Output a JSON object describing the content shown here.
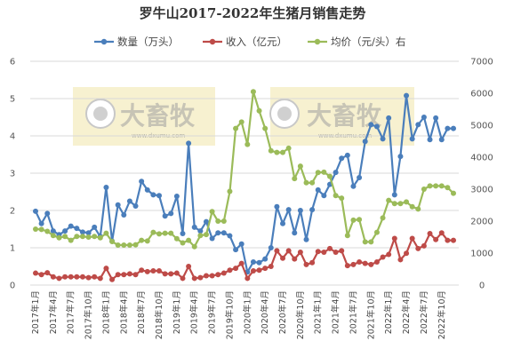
{
  "chart_data": {
    "type": "line",
    "title": "罗牛山2017-2022年生猪月销售走势",
    "x": [
      "2017年1月",
      "2017年2月",
      "2017年3月",
      "2017年4月",
      "2017年5月",
      "2017年6月",
      "2017年7月",
      "2017年8月",
      "2017年9月",
      "2017年10月",
      "2017年11月",
      "2017年12月",
      "2018年1月",
      "2018年2月",
      "2018年3月",
      "2018年4月",
      "2018年5月",
      "2018年6月",
      "2018年7月",
      "2018年8月",
      "2018年9月",
      "2018年10月",
      "2018年11月",
      "2018年12月",
      "2019年1月",
      "2019年2月",
      "2019年3月",
      "2019年4月",
      "2019年5月",
      "2019年6月",
      "2019年7月",
      "2019年8月",
      "2019年9月",
      "2019年10月",
      "2019年11月",
      "2019年12月",
      "2020年1月",
      "2020年2月",
      "2020年3月",
      "2020年4月",
      "2020年5月",
      "2020年6月",
      "2020年7月",
      "2020年8月",
      "2020年9月",
      "2020年10月",
      "2020年11月",
      "2020年12月",
      "2021年1月",
      "2021年2月",
      "2021年3月",
      "2021年4月",
      "2021年5月",
      "2021年6月",
      "2021年7月",
      "2021年8月",
      "2021年9月",
      "2021年10月",
      "2021年11月",
      "2021年12月",
      "2022年1月",
      "2022年2月",
      "2022年3月",
      "2022年4月",
      "2022年5月",
      "2022年6月",
      "2022年7月",
      "2022年8月",
      "2022年9月",
      "2022年10月",
      "2022年11月",
      "2022年12月"
    ],
    "x_tick_labels": [
      "2017年1月",
      "2017年4月",
      "2017年7月",
      "2017年10月",
      "2018年1月",
      "2018年4月",
      "2018年7月",
      "2018年10月",
      "2019年1月",
      "2019年4月",
      "2019年7月",
      "2019年10月",
      "2020年1月",
      "2020年4月",
      "2020年7月",
      "2020年10月",
      "2021年1月",
      "2021年4月",
      "2021年7月",
      "2021年10月",
      "2022年1月",
      "2022年4月",
      "2022年7月",
      "2022年10月"
    ],
    "y_left": {
      "ylim": [
        0,
        6
      ],
      "ticks": [
        "0",
        "1",
        "2",
        "3",
        "4",
        "5",
        "6"
      ]
    },
    "y_right": {
      "ylim": [
        0,
        7000
      ],
      "ticks": [
        "0",
        "1000",
        "2000",
        "3000",
        "4000",
        "5000",
        "6000",
        "7000"
      ]
    },
    "legend_position": "top",
    "series": [
      {
        "name": "数量（万头）",
        "axis": "left",
        "color": "#4a7ebb",
        "values": [
          1.98,
          1.65,
          1.92,
          1.45,
          1.35,
          1.45,
          1.58,
          1.52,
          1.42,
          1.4,
          1.55,
          1.3,
          2.62,
          1.18,
          2.15,
          1.88,
          2.25,
          2.12,
          2.78,
          2.55,
          2.42,
          2.4,
          1.85,
          1.92,
          2.38,
          1.38,
          3.8,
          1.55,
          1.45,
          1.7,
          1.25,
          1.4,
          1.4,
          1.32,
          0.95,
          1.1,
          0.35,
          0.62,
          0.6,
          0.7,
          1.0,
          2.1,
          1.65,
          2.02,
          1.4,
          2.0,
          1.22,
          2.02,
          2.55,
          2.4,
          2.7,
          3.02,
          3.4,
          3.48,
          2.65,
          2.88,
          3.85,
          4.3,
          4.25,
          3.92,
          4.48,
          2.42,
          3.45,
          5.08,
          3.92,
          4.3,
          4.5,
          3.9,
          4.48,
          3.9,
          4.2,
          4.2
        ]
      },
      {
        "name": "收入（亿元）",
        "axis": "left",
        "color": "#be4b48",
        "values": [
          0.32,
          0.28,
          0.33,
          0.22,
          0.18,
          0.22,
          0.22,
          0.22,
          0.22,
          0.2,
          0.22,
          0.18,
          0.45,
          0.15,
          0.28,
          0.28,
          0.3,
          0.28,
          0.4,
          0.36,
          0.38,
          0.38,
          0.3,
          0.3,
          0.32,
          0.18,
          0.5,
          0.18,
          0.2,
          0.25,
          0.25,
          0.28,
          0.32,
          0.4,
          0.45,
          0.58,
          0.18,
          0.38,
          0.4,
          0.45,
          0.5,
          0.92,
          0.72,
          0.92,
          0.7,
          0.88,
          0.55,
          0.6,
          0.9,
          0.88,
          0.98,
          0.88,
          0.92,
          0.52,
          0.55,
          0.62,
          0.58,
          0.55,
          0.62,
          0.75,
          0.82,
          1.25,
          0.68,
          0.85,
          1.25,
          0.98,
          1.05,
          1.38,
          1.22,
          1.4,
          1.2,
          1.2
        ]
      },
      {
        "name": "均价（元/头）右",
        "axis": "right",
        "color": "#9bbb59",
        "values": [
          1750,
          1740,
          1680,
          1550,
          1480,
          1520,
          1400,
          1520,
          1520,
          1500,
          1520,
          1480,
          1620,
          1360,
          1250,
          1250,
          1250,
          1260,
          1400,
          1380,
          1650,
          1600,
          1620,
          1620,
          1450,
          1320,
          1400,
          1200,
          1550,
          1580,
          2300,
          2000,
          2000,
          2930,
          4900,
          5100,
          4400,
          6050,
          5450,
          4900,
          4200,
          4150,
          4150,
          4280,
          3330,
          3720,
          3200,
          3200,
          3520,
          3530,
          3400,
          2800,
          2720,
          1550,
          2030,
          2050,
          1350,
          1350,
          1650,
          2100,
          2650,
          2550,
          2550,
          2600,
          2450,
          2380,
          3000,
          3100,
          3100,
          3100,
          3050,
          2870
        ]
      }
    ]
  },
  "watermark": {
    "brand": "大畜牧",
    "url": "www.dxumu.com"
  }
}
